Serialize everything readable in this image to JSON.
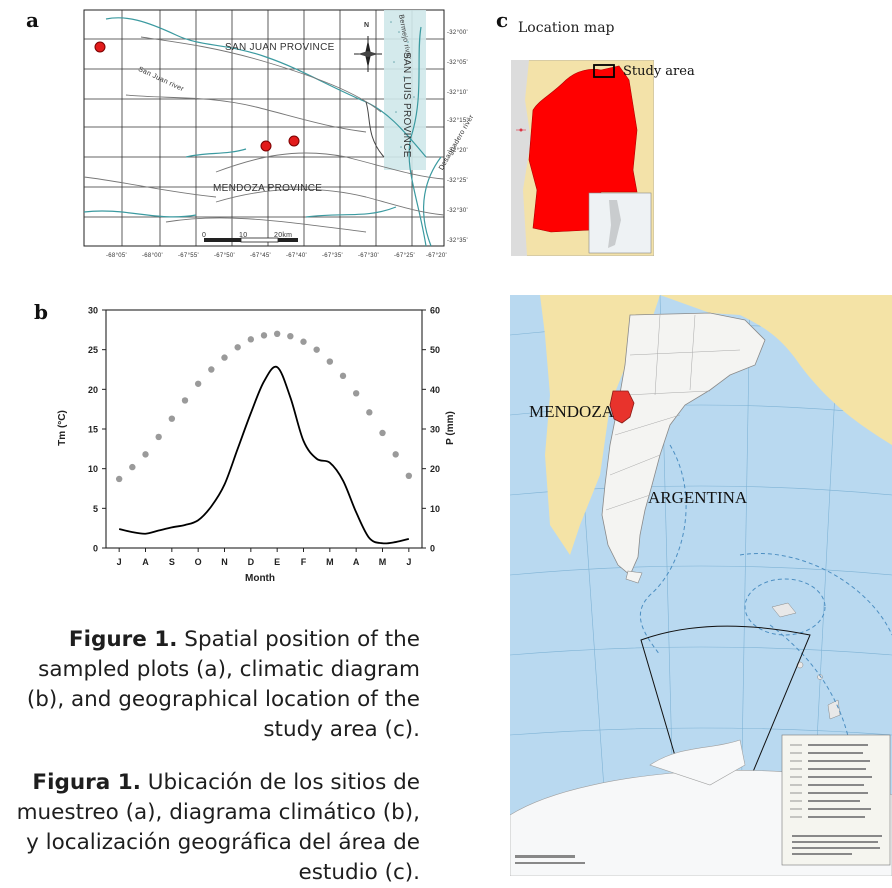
{
  "panels": {
    "a": "a",
    "b": "b",
    "c": "c"
  },
  "map_a": {
    "province_north": "SAN JUAN PROVINCE",
    "province_south": "MENDOZA PROVINCE",
    "province_east": "SAN LUIS PROVINCE",
    "river_sanjuan": "San Juan river",
    "river_bermejo": "Bermejo river",
    "river_desaguadero": "Desaguadero river",
    "north_symbol": "N",
    "scale": [
      "0",
      "10",
      "20km"
    ],
    "x_ticks": [
      "-68°05'",
      "-68°00'",
      "-67°55'",
      "-67°50'",
      "-67°45'",
      "-67°40'",
      "-67°35'",
      "-67°30'",
      "-67°25'",
      "-67°20'"
    ],
    "y_ticks": [
      "-32°00'",
      "-32°05'",
      "-32°10'",
      "-32°15'",
      "-32°20'",
      "-32°25'",
      "-32°30'",
      "-32°35'"
    ]
  },
  "location_map": {
    "title": "Location map",
    "study_area_label": "Study area",
    "colors": {
      "province": "#ff0000",
      "land": "#f3e2a9",
      "sea": "#b8d6ee"
    }
  },
  "big_map": {
    "label_province": "MENDOZA",
    "label_country": "ARGENTINA",
    "colors": {
      "sea": "#b9d9f0",
      "land_neighbors": "#f4e3a6",
      "argentina": "#f4f4f2",
      "province": "#e8332c",
      "graticule": "#7fb3d5"
    }
  },
  "chart_data": {
    "type": "line",
    "categories": [
      "J",
      "A",
      "S",
      "O",
      "N",
      "D",
      "E",
      "F",
      "M",
      "A",
      "M",
      "J"
    ],
    "xlabel": "Month",
    "ylabel_left": "Tm (°C)",
    "ylabel_right": "P (mm)",
    "ylim_left": [
      0,
      30
    ],
    "ylim_right": [
      0,
      60
    ],
    "yticks_left": [
      0,
      5,
      10,
      15,
      20,
      25,
      30
    ],
    "yticks_right": [
      0,
      10,
      20,
      30,
      40,
      50,
      60
    ],
    "grid": false,
    "series": [
      {
        "axis": "left",
        "style": "dotted",
        "color": "#9a9a9a",
        "x": [
          0,
          0.5,
          1,
          1.5,
          2,
          2.5,
          3,
          3.5,
          4,
          4.5,
          5,
          5.5,
          6,
          6.5,
          7,
          7.5,
          8,
          8.5,
          9,
          9.5,
          10,
          10.5,
          11
        ],
        "values": [
          8.7,
          10.2,
          11.8,
          14.0,
          16.3,
          18.6,
          20.7,
          22.5,
          24.0,
          25.3,
          26.3,
          26.8,
          27.0,
          26.7,
          26.0,
          25.0,
          23.5,
          21.7,
          19.5,
          17.1,
          14.5,
          11.8,
          9.1
        ]
      },
      {
        "axis": "right",
        "style": "solid",
        "color": "#000000",
        "x": [
          0,
          0.5,
          1,
          1.5,
          2,
          2.5,
          3,
          3.5,
          4,
          4.5,
          5,
          5.5,
          6,
          6.5,
          7,
          7.5,
          8,
          8.5,
          9,
          9.5,
          10,
          10.5,
          11
        ],
        "values": [
          4.8,
          4.0,
          3.6,
          4.4,
          5.2,
          5.8,
          7.0,
          10.5,
          16,
          25,
          34,
          42,
          45.6,
          38,
          27,
          22.5,
          21.5,
          17,
          9,
          2.5,
          1.2,
          1.5,
          2.3
        ]
      }
    ]
  },
  "caption": {
    "en_bold": "Figure 1.",
    "en_text": "Spatial position of the sampled plots (a), climatic diagram (b), and geographical location of the study area (c).",
    "es_bold": "Figura 1.",
    "es_text": "Ubicación de los sitios de muestreo (a), diagrama climático (b), y localización geográfica del área de estudio (c)."
  }
}
